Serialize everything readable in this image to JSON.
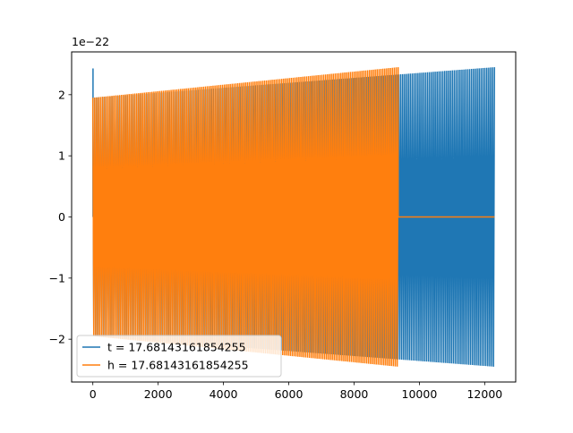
{
  "chart_data": {
    "type": "line",
    "title": "",
    "xlabel": "",
    "ylabel": "",
    "offset_text": "1e−22",
    "xlim": [
      -650,
      12950
    ],
    "ylim": [
      -2.7,
      2.7
    ],
    "xticks": [
      0,
      2000,
      4000,
      6000,
      8000,
      10000,
      12000
    ],
    "xtick_labels": [
      "0",
      "2000",
      "4000",
      "6000",
      "8000",
      "10000",
      "12000"
    ],
    "yticks": [
      -2,
      -1,
      0,
      1,
      2
    ],
    "ytick_labels": [
      "−2",
      "−1",
      "0",
      "1",
      "2"
    ],
    "grid": false,
    "legend_position": "lower-left",
    "series": [
      {
        "name": "t = 17.68143161854255",
        "color": "#1f77b4",
        "x_start": 0,
        "x_end": 12300,
        "amp_start": 1.95,
        "amp_end": 2.45,
        "spike_x": 5,
        "spike_value": 2.43,
        "cycles": 210
      },
      {
        "name": "h = 17.68143161854255",
        "color": "#ff7f0e",
        "x_start": 0,
        "x_end": 9350,
        "amp_start": 1.95,
        "amp_end": 2.45,
        "tail_end": 12300,
        "tail_value": 0,
        "cycles": 160
      }
    ]
  }
}
